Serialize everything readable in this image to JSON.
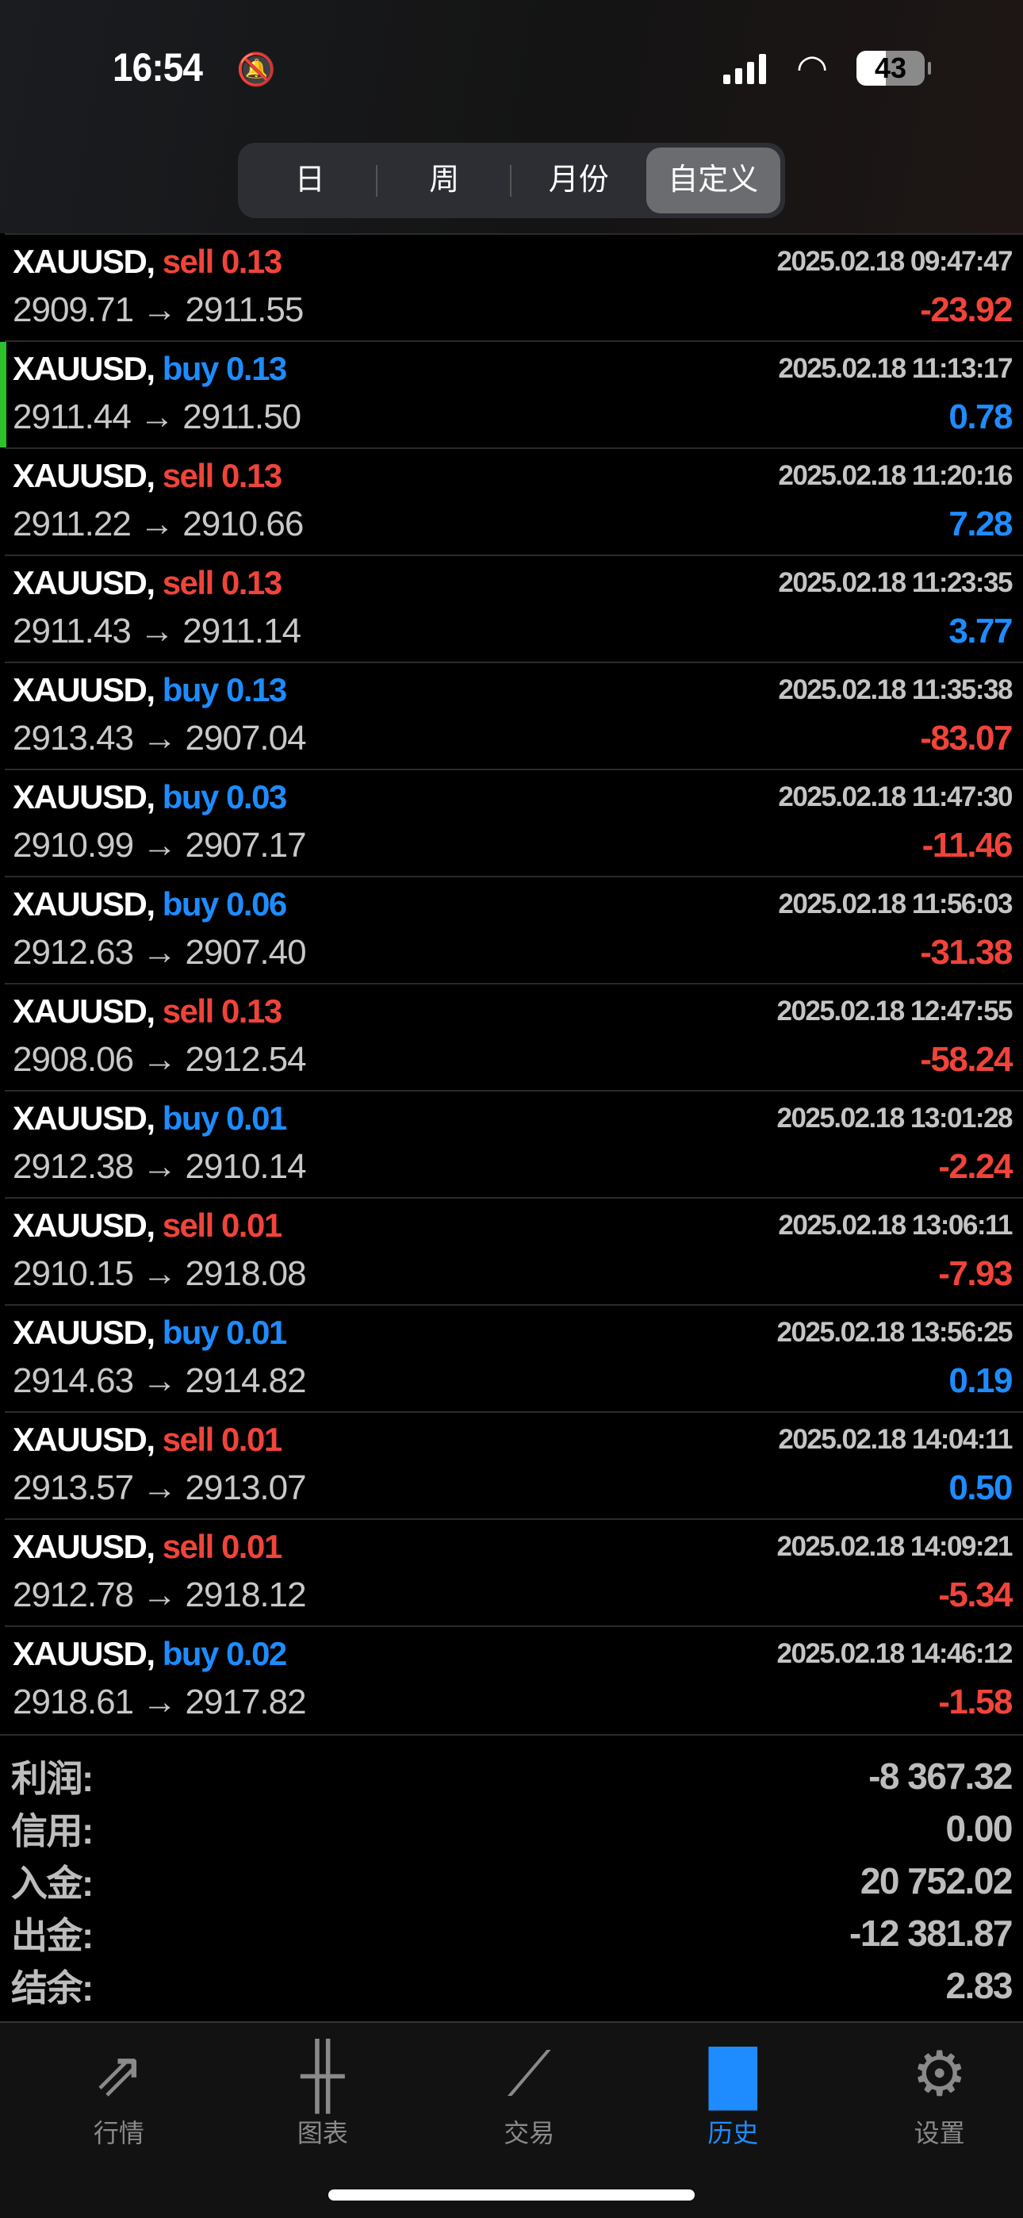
{
  "status_bar": {
    "time": "16:54",
    "battery": "43",
    "icons": [
      "bell-slash-icon",
      "signal-icon",
      "wifi-icon",
      "battery-icon"
    ]
  },
  "segments": [
    {
      "label": "日",
      "active": false
    },
    {
      "label": "周",
      "active": false
    },
    {
      "label": "月份",
      "active": false
    },
    {
      "label": "自定义",
      "active": true
    }
  ],
  "colors": {
    "sell": "#f0443a",
    "buy": "#1e8cff",
    "negative": "#f0443a",
    "positive": "#1e8cff",
    "active_tab": "#1e8cff",
    "marker": "#2bc22b"
  },
  "trades": [
    {
      "symbol": "XAUUSD,",
      "side": "sell",
      "volume": "0.13",
      "time": "2025.02.18 09:47:47",
      "open": "2909.71",
      "close": "2911.55",
      "profit": "-23.92"
    },
    {
      "symbol": "XAUUSD,",
      "side": "buy",
      "volume": "0.13",
      "time": "2025.02.18 11:13:17",
      "open": "2911.44",
      "close": "2911.50",
      "profit": "0.78",
      "selected": true
    },
    {
      "symbol": "XAUUSD,",
      "side": "sell",
      "volume": "0.13",
      "time": "2025.02.18 11:20:16",
      "open": "2911.22",
      "close": "2910.66",
      "profit": "7.28"
    },
    {
      "symbol": "XAUUSD,",
      "side": "sell",
      "volume": "0.13",
      "time": "2025.02.18 11:23:35",
      "open": "2911.43",
      "close": "2911.14",
      "profit": "3.77"
    },
    {
      "symbol": "XAUUSD,",
      "side": "buy",
      "volume": "0.13",
      "time": "2025.02.18 11:35:38",
      "open": "2913.43",
      "close": "2907.04",
      "profit": "-83.07"
    },
    {
      "symbol": "XAUUSD,",
      "side": "buy",
      "volume": "0.03",
      "time": "2025.02.18 11:47:30",
      "open": "2910.99",
      "close": "2907.17",
      "profit": "-11.46"
    },
    {
      "symbol": "XAUUSD,",
      "side": "buy",
      "volume": "0.06",
      "time": "2025.02.18 11:56:03",
      "open": "2912.63",
      "close": "2907.40",
      "profit": "-31.38"
    },
    {
      "symbol": "XAUUSD,",
      "side": "sell",
      "volume": "0.13",
      "time": "2025.02.18 12:47:55",
      "open": "2908.06",
      "close": "2912.54",
      "profit": "-58.24"
    },
    {
      "symbol": "XAUUSD,",
      "side": "buy",
      "volume": "0.01",
      "time": "2025.02.18 13:01:28",
      "open": "2912.38",
      "close": "2910.14",
      "profit": "-2.24"
    },
    {
      "symbol": "XAUUSD,",
      "side": "sell",
      "volume": "0.01",
      "time": "2025.02.18 13:06:11",
      "open": "2910.15",
      "close": "2918.08",
      "profit": "-7.93"
    },
    {
      "symbol": "XAUUSD,",
      "side": "buy",
      "volume": "0.01",
      "time": "2025.02.18 13:56:25",
      "open": "2914.63",
      "close": "2914.82",
      "profit": "0.19"
    },
    {
      "symbol": "XAUUSD,",
      "side": "sell",
      "volume": "0.01",
      "time": "2025.02.18 14:04:11",
      "open": "2913.57",
      "close": "2913.07",
      "profit": "0.50"
    },
    {
      "symbol": "XAUUSD,",
      "side": "sell",
      "volume": "0.01",
      "time": "2025.02.18 14:09:21",
      "open": "2912.78",
      "close": "2918.12",
      "profit": "-5.34"
    },
    {
      "symbol": "XAUUSD,",
      "side": "buy",
      "volume": "0.02",
      "time": "2025.02.18 14:46:12",
      "open": "2918.61",
      "close": "2917.82",
      "profit": "-1.58"
    }
  ],
  "arrow": "→",
  "summary": [
    {
      "label": "利润:",
      "value": "-8 367.32"
    },
    {
      "label": "信用:",
      "value": "0.00"
    },
    {
      "label": "入金:",
      "value": "20 752.02"
    },
    {
      "label": "出金:",
      "value": "-12 381.87"
    },
    {
      "label": "结余:",
      "value": "2.83"
    }
  ],
  "tabs": [
    {
      "label": "行情",
      "icon": "quotes-icon",
      "glyph": "⇗",
      "active": false
    },
    {
      "label": "图表",
      "icon": "candlestick-chart-icon",
      "glyph": "╫",
      "active": false
    },
    {
      "label": "交易",
      "icon": "trade-icon",
      "glyph": "⟋",
      "active": false
    },
    {
      "label": "历史",
      "icon": "history-inbox-icon",
      "glyph": "▇",
      "active": true
    },
    {
      "label": "设置",
      "icon": "gear-icon",
      "glyph": "⚙",
      "active": false
    }
  ]
}
